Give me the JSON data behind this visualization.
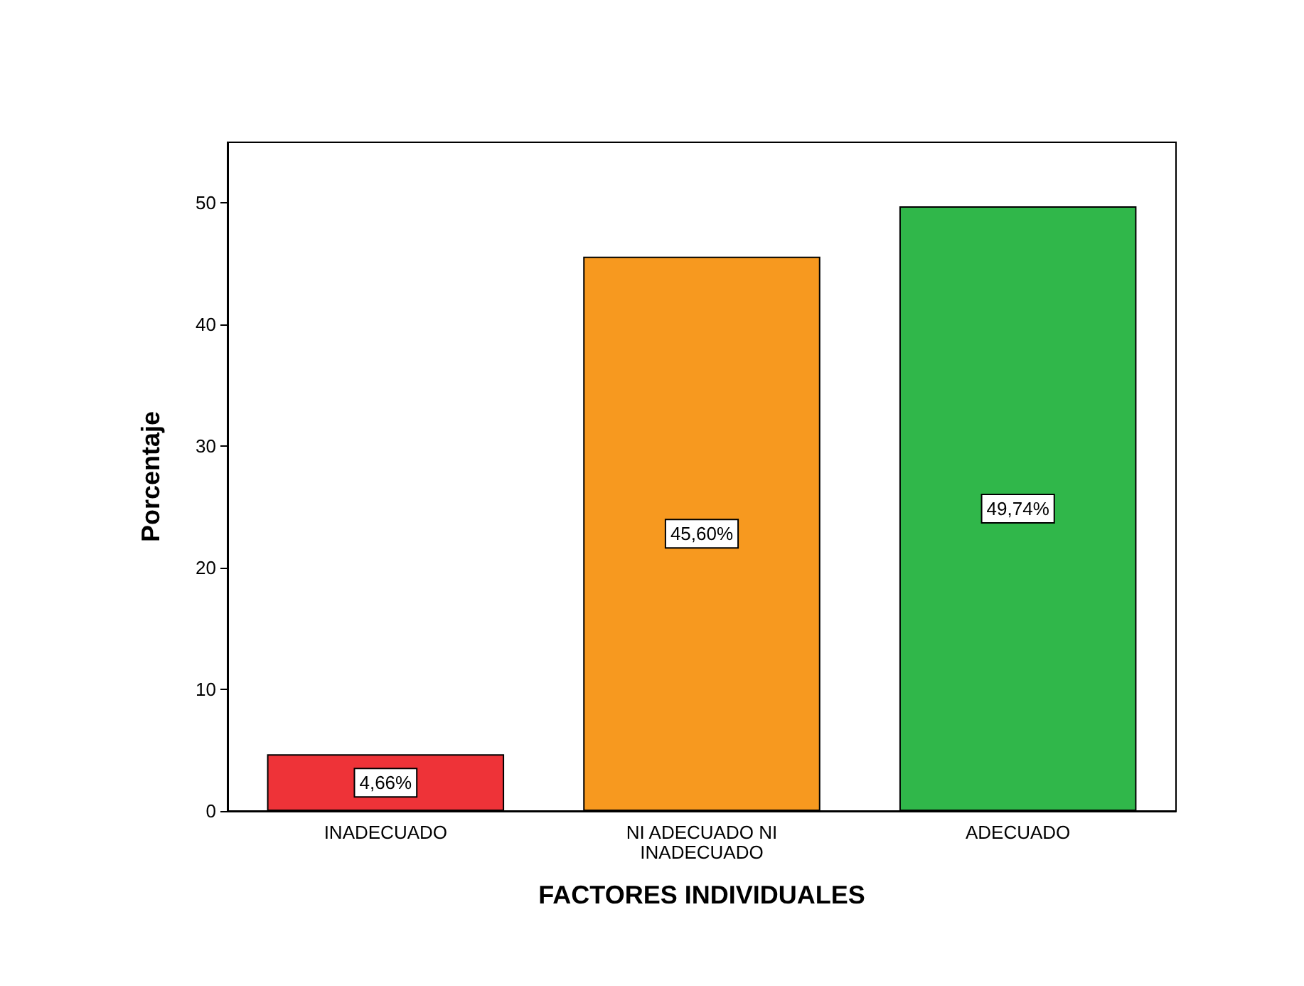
{
  "chart_data": {
    "type": "bar",
    "xlabel": "FACTORES INDIVIDUALES",
    "ylabel": "Porcentaje",
    "categories": [
      "INADECUADO",
      "NI ADECUADO NI\nINADECUADO",
      "ADECUADO"
    ],
    "values": [
      4.66,
      45.6,
      49.74
    ],
    "colors": [
      "#ee3338",
      "#f7991f",
      "#30b74a"
    ],
    "value_labels": [
      "4,66%",
      "45,60%",
      "49,74%"
    ],
    "ylim": [
      0,
      55
    ],
    "yticks": [
      0,
      10,
      20,
      30,
      40,
      50
    ],
    "grid": false
  }
}
